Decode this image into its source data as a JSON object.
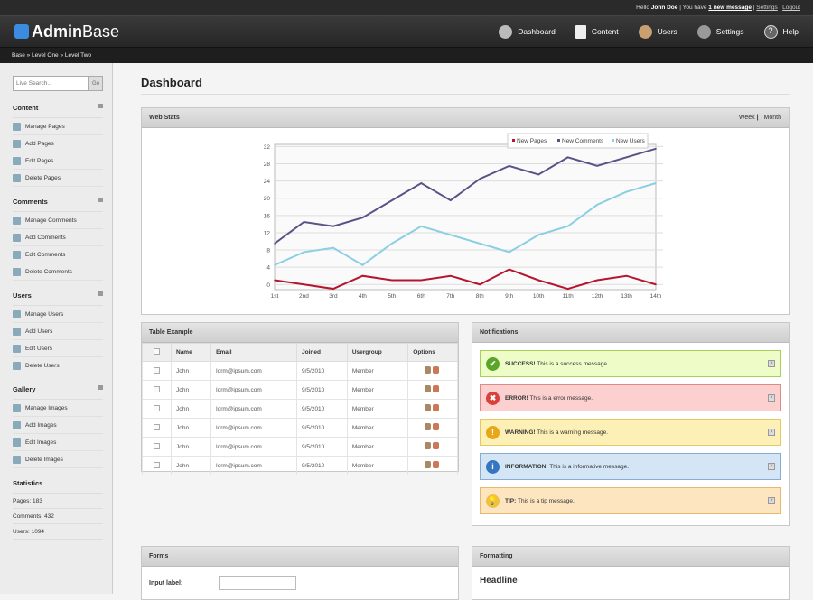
{
  "topbar": {
    "hello": "Hello",
    "user": "John Doe",
    "msg_pre": "| You have",
    "msg_link": "1 new message",
    "settings": "Settings",
    "logout": "Logout"
  },
  "logo": {
    "a": "Admin",
    "b": "Base"
  },
  "nav": [
    {
      "label": "Dashboard",
      "icon": "gear-icon"
    },
    {
      "label": "Content",
      "icon": "document-icon"
    },
    {
      "label": "Users",
      "icon": "user-icon"
    },
    {
      "label": "Settings",
      "icon": "settings-icon"
    },
    {
      "label": "Help",
      "icon": "help-icon"
    }
  ],
  "breadcrumb": "Base » Level One » Level Two",
  "search": {
    "placeholder": "Live Search...",
    "button": "Go"
  },
  "sidebar": [
    {
      "title": "Content",
      "items": [
        "Manage Pages",
        "Add Pages",
        "Edit Pages",
        "Delete Pages"
      ]
    },
    {
      "title": "Comments",
      "items": [
        "Manage Comments",
        "Add Comments",
        "Edit Comments",
        "Delete Comments"
      ]
    },
    {
      "title": "Users",
      "items": [
        "Manage Users",
        "Add Users",
        "Edit Users",
        "Delete Users"
      ]
    },
    {
      "title": "Gallery",
      "items": [
        "Manage Images",
        "Add Images",
        "Edit Images",
        "Delete Images"
      ]
    }
  ],
  "statistics": {
    "title": "Statistics",
    "items": [
      "Pages: 183",
      "Comments: 432",
      "Users: 1094"
    ]
  },
  "page_title": "Dashboard",
  "webstats": {
    "title": "Web Stats",
    "week": "Week",
    "month": "Month"
  },
  "chart_data": {
    "type": "line",
    "x": [
      "1st",
      "2nd",
      "3rd",
      "4th",
      "5th",
      "6th",
      "7th",
      "8th",
      "9th",
      "10th",
      "11th",
      "12th",
      "13th",
      "14th"
    ],
    "yticks": [
      0,
      4,
      8,
      12,
      16,
      20,
      24,
      28,
      32
    ],
    "ylim": [
      -1.2,
      32.5
    ],
    "grid": true,
    "legend": "top-right",
    "series": [
      {
        "name": "New Pages",
        "color": "#b5162f",
        "values": [
          1,
          0,
          -1,
          2,
          1,
          1,
          2,
          0,
          3.5,
          1,
          -1,
          1,
          2,
          0
        ]
      },
      {
        "name": "New Comments",
        "color": "#5a5185",
        "values": [
          9.5,
          14.5,
          13.5,
          15.5,
          19.5,
          23.5,
          19.5,
          24.5,
          27.5,
          25.5,
          29.5,
          27.5,
          29.5,
          31.5
        ]
      },
      {
        "name": "New Users",
        "color": "#8bcfe3",
        "values": [
          4.5,
          7.5,
          8.5,
          4.5,
          9.5,
          13.5,
          11.5,
          9.5,
          7.5,
          11.5,
          13.5,
          18.5,
          21.5,
          23.5
        ]
      }
    ]
  },
  "table": {
    "title": "Table Example",
    "headers": [
      "Name",
      "Email",
      "Joined",
      "Usergroup",
      "Options"
    ],
    "rows": [
      [
        "John",
        "lorm@ipsum.com",
        "9/5/2010",
        "Member"
      ],
      [
        "John",
        "lorm@ipsum.com",
        "9/5/2010",
        "Member"
      ],
      [
        "John",
        "lorm@ipsum.com",
        "9/5/2010",
        "Member"
      ],
      [
        "John",
        "lorm@ipsum.com",
        "9/5/2010",
        "Member"
      ],
      [
        "John",
        "lorm@ipsum.com",
        "9/5/2010",
        "Member"
      ],
      [
        "John",
        "lorm@ipsum.com",
        "9/5/2010",
        "Member"
      ]
    ]
  },
  "notifications": {
    "title": "Notifications",
    "items": [
      {
        "type": "success",
        "label": "SUCCESS!",
        "text": "This is a success message.",
        "bg": "#eefcc8",
        "border": "#a8cf5a",
        "icon": "✔",
        "ic": "#5aa52a"
      },
      {
        "type": "error",
        "label": "ERROR!",
        "text": "This is a error message.",
        "bg": "#fbd0cf",
        "border": "#e08a88",
        "icon": "✖",
        "ic": "#d9413a"
      },
      {
        "type": "warning",
        "label": "WARNING!",
        "text": "This is a warning message.",
        "bg": "#fdf0b6",
        "border": "#e6c860",
        "icon": "!",
        "ic": "#e6a818"
      },
      {
        "type": "information",
        "label": "INFORMATION!",
        "text": "This is a informative message.",
        "bg": "#d4e5f6",
        "border": "#86acd3",
        "icon": "i",
        "ic": "#3576c0"
      },
      {
        "type": "tip",
        "label": "TIP:",
        "text": "This is a tip message.",
        "bg": "#fde5c0",
        "border": "#e6b96f",
        "icon": "💡",
        "ic": "#f0c040"
      }
    ]
  },
  "forms": {
    "title": "Forms",
    "input_label": "Input label:"
  },
  "formatting": {
    "title": "Formatting",
    "headline": "Headline"
  }
}
